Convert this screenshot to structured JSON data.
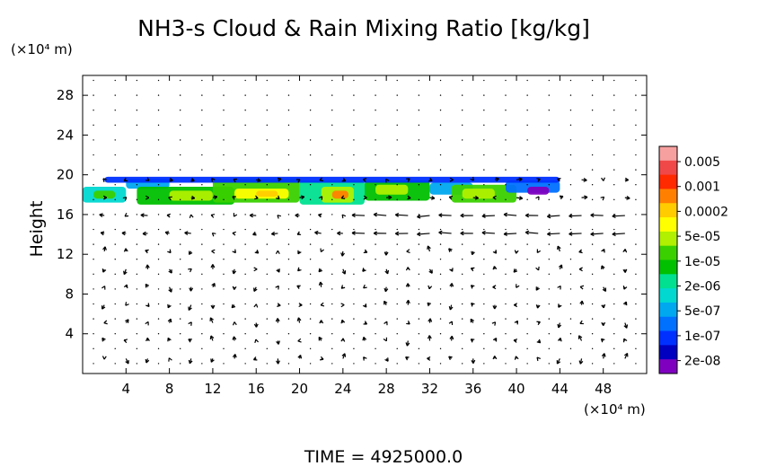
{
  "chart_data": {
    "type": "heatmap",
    "title": "NH3-s Cloud & Rain Mixing Ratio [kg/kg]",
    "xlabel": "",
    "ylabel": "Height",
    "x_unit": "(×10⁴ m)",
    "y_unit": "(×10⁴ m)",
    "xlim": [
      0,
      52
    ],
    "ylim": [
      0,
      30
    ],
    "x_ticks": [
      4,
      8,
      12,
      16,
      20,
      24,
      28,
      32,
      36,
      40,
      44,
      48
    ],
    "y_ticks": [
      4,
      8,
      12,
      16,
      20,
      24,
      28
    ],
    "colorbar": {
      "labels": [
        "0.005",
        "0.001",
        "0.0002",
        "5e-05",
        "1e-05",
        "2e-06",
        "5e-07",
        "1e-07",
        "2e-08"
      ],
      "colors": [
        "#f7a0a0",
        "#f04848",
        "#ff2a00",
        "#ff8000",
        "#ffcc00",
        "#ffff00",
        "#b0f000",
        "#3ad000",
        "#00c000",
        "#00e090",
        "#00d8d0",
        "#00a8f0",
        "#0070ff",
        "#0030ff",
        "#0000c0",
        "#8000c0"
      ]
    },
    "cloud_layer": {
      "x_range": [
        0,
        44
      ],
      "y_range": [
        16.5,
        20
      ]
    },
    "footer": "TIME = 4925000.0"
  }
}
